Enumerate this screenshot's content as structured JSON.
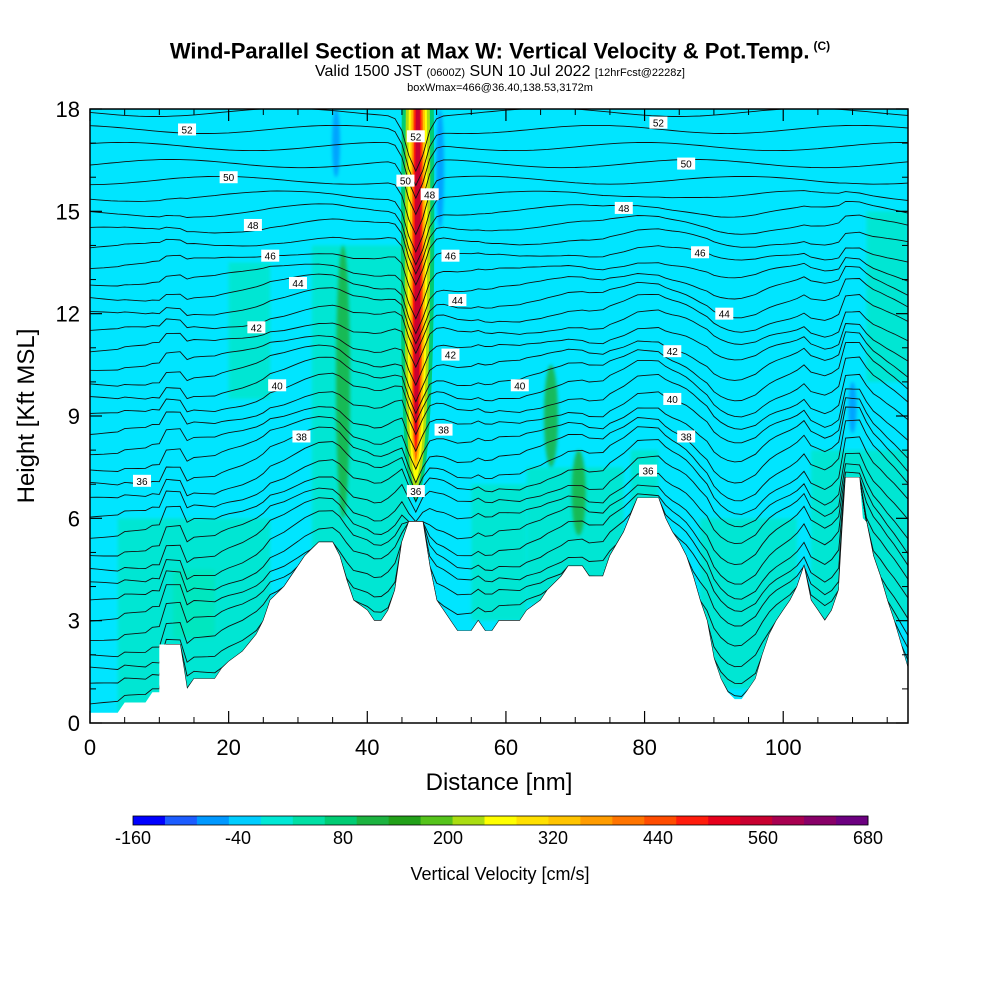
{
  "title": {
    "main": "Wind-Parallel Section at Max W: Vertical Velocity & Pot.Temp.",
    "copyright": "(C)",
    "sub_prefix": "Valid 1500 JST",
    "sub_utc": "(0600Z)",
    "sub_date": "SUN 10 Jul 2022",
    "sub_fcst": "[12hrFcst@2228z]",
    "boxline": "boxWmax=466@36.40,138.53,3172m"
  },
  "chart_data": {
    "type": "heatmap",
    "xlabel": "Distance [nm]",
    "ylabel": "Height [Kft MSL]",
    "xlim": [
      0,
      118
    ],
    "ylim": [
      0,
      18
    ],
    "x_ticks": [
      0,
      20,
      40,
      60,
      80,
      100
    ],
    "y_ticks": [
      0,
      3,
      6,
      9,
      12,
      15,
      18
    ],
    "x_tick_labels": [
      "0",
      "20",
      "40",
      "60",
      "80",
      "100"
    ],
    "y_tick_labels": [
      "0",
      "3",
      "6",
      "9",
      "12",
      "15",
      "18"
    ],
    "background_value_color": "#00e5ff",
    "terrain": [
      [
        0,
        0.3
      ],
      [
        4,
        0.3
      ],
      [
        5,
        0.6
      ],
      [
        8,
        0.6
      ],
      [
        9,
        0.9
      ],
      [
        10,
        0.9
      ],
      [
        10,
        2.3
      ],
      [
        13,
        2.3
      ],
      [
        14,
        1.0
      ],
      [
        15,
        1.3
      ],
      [
        18,
        1.3
      ],
      [
        19,
        1.6
      ],
      [
        20,
        1.8
      ],
      [
        22,
        2.1
      ],
      [
        24,
        2.6
      ],
      [
        25,
        3.0
      ],
      [
        26,
        3.6
      ],
      [
        28,
        4.0
      ],
      [
        30,
        4.6
      ],
      [
        31,
        4.9
      ],
      [
        33,
        5.3
      ],
      [
        35,
        5.3
      ],
      [
        36,
        4.9
      ],
      [
        37,
        4.2
      ],
      [
        38,
        3.6
      ],
      [
        40,
        3.3
      ],
      [
        41,
        3.0
      ],
      [
        42,
        3.0
      ],
      [
        43,
        3.3
      ],
      [
        44,
        3.9
      ],
      [
        45,
        5.3
      ],
      [
        46,
        5.9
      ],
      [
        48,
        5.9
      ],
      [
        49,
        4.6
      ],
      [
        50,
        3.6
      ],
      [
        51,
        3.3
      ],
      [
        52,
        3.0
      ],
      [
        53,
        2.7
      ],
      [
        55,
        2.7
      ],
      [
        56,
        3.0
      ],
      [
        57,
        2.7
      ],
      [
        58,
        2.7
      ],
      [
        59,
        3.0
      ],
      [
        62,
        3.0
      ],
      [
        63,
        3.3
      ],
      [
        65,
        3.6
      ],
      [
        66,
        3.9
      ],
      [
        68,
        4.3
      ],
      [
        69,
        4.6
      ],
      [
        71,
        4.6
      ],
      [
        72,
        4.3
      ],
      [
        74,
        4.3
      ],
      [
        75,
        4.9
      ],
      [
        77,
        5.6
      ],
      [
        79,
        6.6
      ],
      [
        82,
        6.6
      ],
      [
        83,
        6.0
      ],
      [
        84,
        5.6
      ],
      [
        85,
        5.3
      ],
      [
        86,
        4.9
      ],
      [
        87,
        4.3
      ],
      [
        88,
        3.6
      ],
      [
        89,
        3.0
      ],
      [
        90,
        1.9
      ],
      [
        91,
        1.3
      ],
      [
        92,
        0.9
      ],
      [
        93,
        0.7
      ],
      [
        94,
        0.7
      ],
      [
        95,
        1.0
      ],
      [
        96,
        1.3
      ],
      [
        97,
        2.0
      ],
      [
        98,
        2.6
      ],
      [
        99,
        3.0
      ],
      [
        100,
        3.3
      ],
      [
        101,
        3.6
      ],
      [
        102,
        4.0
      ],
      [
        103,
        4.6
      ],
      [
        104,
        3.6
      ],
      [
        105,
        3.3
      ],
      [
        106,
        3.0
      ],
      [
        107,
        3.3
      ],
      [
        108,
        3.9
      ],
      [
        108.5,
        5.6
      ],
      [
        109,
        7.2
      ],
      [
        111,
        7.2
      ],
      [
        111.5,
        6.0
      ],
      [
        112,
        5.9
      ],
      [
        113,
        4.9
      ],
      [
        114,
        4.3
      ],
      [
        115,
        3.6
      ],
      [
        116,
        3.0
      ],
      [
        117,
        2.3
      ],
      [
        118,
        1.6
      ]
    ],
    "w_features": [
      {
        "kind": "updraft_core",
        "x": 47,
        "y_bottom": 6.5,
        "y_top": 18,
        "value_max": 466
      },
      {
        "kind": "weak_updraft",
        "x": 36.5,
        "y_bottom": 6.0,
        "y_top": 14.0,
        "value": 80
      },
      {
        "kind": "weak_updraft",
        "x": 66.5,
        "y_bottom": 7.5,
        "y_top": 10.5,
        "value": 80
      },
      {
        "kind": "weak_updraft",
        "x": 70.5,
        "y_bottom": 5.5,
        "y_top": 8.0,
        "value": 80
      },
      {
        "kind": "downdraft",
        "x": 35.5,
        "y_bottom": 16.0,
        "y_top": 18,
        "value": -40
      },
      {
        "kind": "downdraft",
        "x": 50.5,
        "y_bottom": 14.5,
        "y_top": 18,
        "value": -40
      },
      {
        "kind": "downdraft",
        "x": 110,
        "y_bottom": 8.5,
        "y_top": 10.0,
        "value": -40
      }
    ],
    "theta_contours": {
      "levels": [
        36,
        38,
        40,
        42,
        44,
        46,
        48,
        50,
        52
      ],
      "labels": [
        {
          "text": "52",
          "x": 14,
          "y": 17.4
        },
        {
          "text": "52",
          "x": 47,
          "y": 17.2
        },
        {
          "text": "52",
          "x": 82,
          "y": 17.6
        },
        {
          "text": "50",
          "x": 20,
          "y": 16.0
        },
        {
          "text": "50",
          "x": 45.5,
          "y": 15.9
        },
        {
          "text": "50",
          "x": 86,
          "y": 16.4
        },
        {
          "text": "48",
          "x": 23.5,
          "y": 14.6
        },
        {
          "text": "48",
          "x": 49,
          "y": 15.5
        },
        {
          "text": "48",
          "x": 77,
          "y": 15.1
        },
        {
          "text": "46",
          "x": 26,
          "y": 13.7
        },
        {
          "text": "46",
          "x": 52,
          "y": 13.7
        },
        {
          "text": "46",
          "x": 88,
          "y": 13.8
        },
        {
          "text": "44",
          "x": 30,
          "y": 12.9
        },
        {
          "text": "44",
          "x": 53,
          "y": 12.4
        },
        {
          "text": "44",
          "x": 91.5,
          "y": 12.0
        },
        {
          "text": "42",
          "x": 24,
          "y": 11.6
        },
        {
          "text": "42",
          "x": 52,
          "y": 10.8
        },
        {
          "text": "42",
          "x": 84,
          "y": 10.9
        },
        {
          "text": "40",
          "x": 27,
          "y": 9.9
        },
        {
          "text": "40",
          "x": 62,
          "y": 9.9
        },
        {
          "text": "40",
          "x": 84,
          "y": 9.5
        },
        {
          "text": "38",
          "x": 30.5,
          "y": 8.4
        },
        {
          "text": "38",
          "x": 51,
          "y": 8.6
        },
        {
          "text": "38",
          "x": 86,
          "y": 8.4
        },
        {
          "text": "36",
          "x": 7.5,
          "y": 7.1
        },
        {
          "text": "36",
          "x": 47,
          "y": 6.8
        },
        {
          "text": "36",
          "x": 80.5,
          "y": 7.4
        }
      ]
    },
    "colorbar": {
      "title": "Vertical Velocity [cm/s]",
      "tick_labels": [
        "-160",
        "-40",
        "80",
        "200",
        "320",
        "440",
        "560",
        "680"
      ],
      "colors": [
        "#0000ff",
        "#1c5cff",
        "#0098ff",
        "#00cdff",
        "#00e8d5",
        "#00e0a4",
        "#00cc73",
        "#1cb340",
        "#22a019",
        "#55c31b",
        "#aadd11",
        "#ffff00",
        "#ffe000",
        "#ffc400",
        "#ff9c00",
        "#ff7400",
        "#ff4c00",
        "#ff1c0c",
        "#e6001c",
        "#c80030",
        "#a80050",
        "#880068",
        "#6c0080"
      ]
    }
  }
}
